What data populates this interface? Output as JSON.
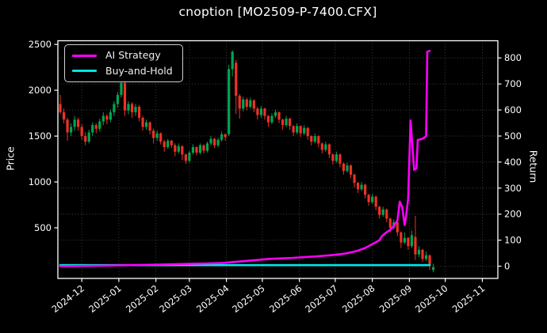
{
  "window": {
    "title": "cnoption [MO2509-P-7400.CFX]"
  },
  "colors": {
    "background": "#000000",
    "text": "#ffffff",
    "spine": "#ffffff",
    "grid": "#4f4f4f",
    "candle_up": "#00a550",
    "candle_down": "#ef3125",
    "ai_strategy": "#ff00ff",
    "buy_and_hold": "#00e5e5"
  },
  "legend": {
    "items": [
      {
        "label": "AI Strategy",
        "color": "#ff00ff"
      },
      {
        "label": "Buy-and-Hold",
        "color": "#00e5e5"
      }
    ]
  },
  "axes": {
    "left": {
      "label": "Price",
      "ticks": [
        500,
        1000,
        1500,
        2000,
        2500
      ]
    },
    "right": {
      "label": "Return",
      "ticks": [
        0,
        100,
        200,
        300,
        400,
        500,
        600,
        700,
        800
      ]
    },
    "x": {
      "tick_labels": [
        "2024-12",
        "2025-01",
        "2025-02",
        "2025-03",
        "2025-04",
        "2025-05",
        "2025-06",
        "2025-07",
        "2025-08",
        "2025-09",
        "2025-10",
        "2025-11"
      ]
    }
  },
  "chart_data": {
    "type": "candlestick",
    "title": "cnoption [MO2509-P-7400.CFX]",
    "grid": true,
    "legend_position": "upper-left",
    "x_axis": {
      "tick_labels": [
        "2024-12",
        "2025-01",
        "2025-02",
        "2025-03",
        "2025-04",
        "2025-05",
        "2025-06",
        "2025-07",
        "2025-08",
        "2025-09",
        "2025-10",
        "2025-11"
      ],
      "range": [
        "2024-11-11",
        "2025-11-14"
      ]
    },
    "left_axis": {
      "label": "Price",
      "ticks": [
        500,
        1000,
        1500,
        2000,
        2500
      ],
      "range": [
        -52,
        2540
      ]
    },
    "right_axis": {
      "label": "Return",
      "ticks": [
        0,
        100,
        200,
        300,
        400,
        500,
        600,
        700,
        800
      ],
      "range": [
        -47,
        866
      ]
    },
    "candles": {
      "start_date": "2024-11-13",
      "step_days": 3,
      "ohlc": [
        [
          1850,
          1950,
          1740,
          1760
        ],
        [
          1760,
          1800,
          1640,
          1680
        ],
        [
          1680,
          1700,
          1450,
          1540
        ],
        [
          1540,
          1640,
          1500,
          1600
        ],
        [
          1600,
          1720,
          1560,
          1680
        ],
        [
          1680,
          1700,
          1560,
          1600
        ],
        [
          1600,
          1630,
          1460,
          1500
        ],
        [
          1500,
          1540,
          1400,
          1440
        ],
        [
          1440,
          1570,
          1420,
          1540
        ],
        [
          1540,
          1650,
          1500,
          1620
        ],
        [
          1620,
          1640,
          1530,
          1580
        ],
        [
          1580,
          1690,
          1550,
          1660
        ],
        [
          1660,
          1760,
          1620,
          1720
        ],
        [
          1720,
          1740,
          1630,
          1680
        ],
        [
          1680,
          1790,
          1650,
          1760
        ],
        [
          1760,
          1880,
          1720,
          1850
        ],
        [
          1850,
          1980,
          1810,
          1950
        ],
        [
          1950,
          2150,
          1920,
          2080
        ],
        [
          2080,
          2200,
          1720,
          1780
        ],
        [
          1780,
          1880,
          1740,
          1850
        ],
        [
          1850,
          1870,
          1700,
          1760
        ],
        [
          1760,
          1850,
          1720,
          1820
        ],
        [
          1820,
          1840,
          1660,
          1700
        ],
        [
          1700,
          1720,
          1560,
          1600
        ],
        [
          1600,
          1680,
          1570,
          1650
        ],
        [
          1650,
          1660,
          1520,
          1560
        ],
        [
          1560,
          1580,
          1420,
          1480
        ],
        [
          1480,
          1560,
          1450,
          1530
        ],
        [
          1530,
          1540,
          1410,
          1440
        ],
        [
          1440,
          1460,
          1330,
          1380
        ],
        [
          1380,
          1470,
          1360,
          1450
        ],
        [
          1450,
          1460,
          1370,
          1400
        ],
        [
          1400,
          1420,
          1280,
          1330
        ],
        [
          1330,
          1420,
          1310,
          1390
        ],
        [
          1390,
          1400,
          1240,
          1300
        ],
        [
          1300,
          1310,
          1198,
          1230
        ],
        [
          1230,
          1340,
          1210,
          1320
        ],
        [
          1320,
          1410,
          1300,
          1380
        ],
        [
          1380,
          1390,
          1290,
          1320
        ],
        [
          1320,
          1420,
          1300,
          1400
        ],
        [
          1400,
          1410,
          1310,
          1340
        ],
        [
          1340,
          1440,
          1320,
          1420
        ],
        [
          1420,
          1500,
          1400,
          1470
        ],
        [
          1470,
          1480,
          1370,
          1400
        ],
        [
          1400,
          1480,
          1380,
          1460
        ],
        [
          1460,
          1550,
          1440,
          1520
        ],
        [
          1520,
          1530,
          1450,
          1490
        ],
        [
          1520,
          2280,
          1500,
          2230
        ],
        [
          2230,
          2435,
          2150,
          2420
        ],
        [
          2300,
          2330,
          1740,
          1940
        ],
        [
          1940,
          1960,
          1690,
          1800
        ],
        [
          1800,
          1930,
          1770,
          1900
        ],
        [
          1900,
          1920,
          1780,
          1820
        ],
        [
          1820,
          1920,
          1800,
          1890
        ],
        [
          1890,
          1900,
          1760,
          1800
        ],
        [
          1800,
          1820,
          1680,
          1730
        ],
        [
          1730,
          1830,
          1700,
          1800
        ],
        [
          1800,
          1810,
          1680,
          1720
        ],
        [
          1720,
          1730,
          1600,
          1650
        ],
        [
          1650,
          1750,
          1630,
          1720
        ],
        [
          1720,
          1790,
          1700,
          1760
        ],
        [
          1760,
          1770,
          1640,
          1680
        ],
        [
          1680,
          1690,
          1570,
          1620
        ],
        [
          1620,
          1720,
          1600,
          1690
        ],
        [
          1690,
          1700,
          1570,
          1610
        ],
        [
          1610,
          1620,
          1500,
          1540
        ],
        [
          1540,
          1640,
          1520,
          1610
        ],
        [
          1610,
          1620,
          1490,
          1530
        ],
        [
          1530,
          1620,
          1510,
          1590
        ],
        [
          1590,
          1600,
          1460,
          1500
        ],
        [
          1500,
          1510,
          1400,
          1440
        ],
        [
          1440,
          1530,
          1420,
          1500
        ],
        [
          1500,
          1510,
          1380,
          1420
        ],
        [
          1420,
          1430,
          1310,
          1350
        ],
        [
          1350,
          1440,
          1330,
          1410
        ],
        [
          1410,
          1420,
          1260,
          1300
        ],
        [
          1300,
          1310,
          1190,
          1230
        ],
        [
          1230,
          1330,
          1210,
          1300
        ],
        [
          1300,
          1310,
          1160,
          1200
        ],
        [
          1200,
          1210,
          1080,
          1120
        ],
        [
          1120,
          1210,
          1100,
          1180
        ],
        [
          1180,
          1190,
          1040,
          1080
        ],
        [
          1080,
          1090,
          940,
          990
        ],
        [
          990,
          1000,
          880,
          920
        ],
        [
          920,
          1000,
          900,
          970
        ],
        [
          970,
          980,
          820,
          860
        ],
        [
          860,
          870,
          740,
          780
        ],
        [
          780,
          870,
          760,
          840
        ],
        [
          840,
          850,
          690,
          730
        ],
        [
          730,
          740,
          600,
          640
        ],
        [
          640,
          730,
          620,
          700
        ],
        [
          700,
          710,
          560,
          600
        ],
        [
          600,
          610,
          450,
          500
        ],
        [
          500,
          590,
          480,
          560
        ],
        [
          560,
          570,
          410,
          450
        ],
        [
          450,
          460,
          280,
          340
        ],
        [
          340,
          450,
          320,
          390
        ],
        [
          390,
          400,
          260,
          300
        ],
        [
          300,
          470,
          280,
          420
        ],
        [
          400,
          630,
          150,
          210
        ],
        [
          210,
          300,
          180,
          260
        ],
        [
          260,
          270,
          130,
          160
        ],
        [
          160,
          240,
          140,
          200
        ],
        [
          200,
          210,
          40,
          90
        ],
        [
          40,
          110,
          15,
          70
        ]
      ]
    },
    "series": [
      {
        "name": "AI Strategy",
        "axis": "right",
        "color": "#ff00ff",
        "points": [
          [
            "2024-11-13",
            0
          ],
          [
            "2024-12-05",
            1
          ],
          [
            "2025-01-01",
            3
          ],
          [
            "2025-02-03",
            6
          ],
          [
            "2025-03-02",
            9
          ],
          [
            "2025-03-28",
            12
          ],
          [
            "2025-04-17",
            20
          ],
          [
            "2025-05-07",
            28
          ],
          [
            "2025-05-27",
            32
          ],
          [
            "2025-06-16",
            38
          ],
          [
            "2025-06-29",
            43
          ],
          [
            "2025-07-09",
            48
          ],
          [
            "2025-07-19",
            58
          ],
          [
            "2025-07-26",
            70
          ],
          [
            "2025-08-01",
            85
          ],
          [
            "2025-08-04",
            92
          ],
          [
            "2025-08-07",
            100
          ],
          [
            "2025-08-09",
            115
          ],
          [
            "2025-08-12",
            127
          ],
          [
            "2025-08-16",
            140
          ],
          [
            "2025-08-19",
            155
          ],
          [
            "2025-08-22",
            175
          ],
          [
            "2025-08-24",
            248
          ],
          [
            "2025-08-26",
            227
          ],
          [
            "2025-08-28",
            158
          ],
          [
            "2025-08-29",
            185
          ],
          [
            "2025-08-31",
            260
          ],
          [
            "2025-09-01",
            415
          ],
          [
            "2025-09-02",
            560
          ],
          [
            "2025-09-04",
            430
          ],
          [
            "2025-09-05",
            370
          ],
          [
            "2025-09-07",
            376
          ],
          [
            "2025-09-08",
            485
          ],
          [
            "2025-09-11",
            488
          ],
          [
            "2025-09-13",
            492
          ],
          [
            "2025-09-15",
            500
          ],
          [
            "2025-09-16",
            824
          ],
          [
            "2025-09-18",
            827
          ]
        ]
      },
      {
        "name": "Buy-and-Hold",
        "axis": "right",
        "color": "#00e5e5",
        "points": [
          [
            "2024-11-13",
            4
          ],
          [
            "2025-03-01",
            4
          ],
          [
            "2025-07-01",
            4
          ],
          [
            "2025-09-18",
            4
          ]
        ]
      }
    ]
  }
}
